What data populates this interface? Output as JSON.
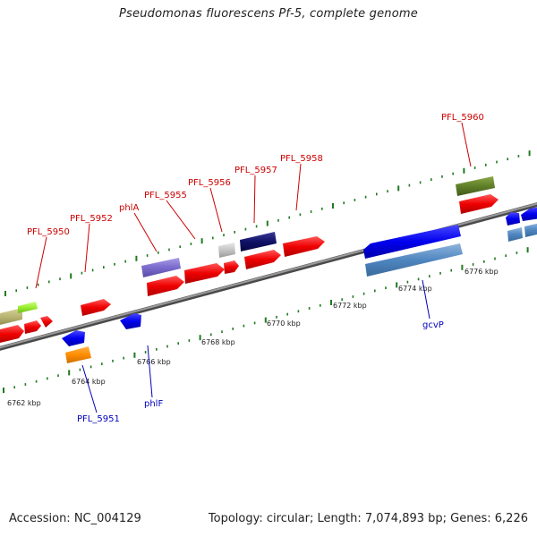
{
  "title": "Pseudomonas fluorescens Pf-5, complete genome",
  "footer": {
    "accession": "Accession: NC_004129",
    "summary": "Topology: circular; Length: 7,074,893 bp; Genes: 6,226"
  },
  "colors": {
    "backbone": "#808080",
    "tick": "#1f7a1f",
    "label_forward": "#cc0000",
    "label_reverse": "#0000bb"
  },
  "scale_labels": [
    "6762 kbp",
    "6764 kbp",
    "6766 kbp",
    "6768 kbp",
    "6770 kbp",
    "6772 kbp",
    "6774 kbp",
    "6776 kbp"
  ],
  "gene_labels_top": [
    "PFL_5950",
    "PFL_5952",
    "phlA",
    "PFL_5955",
    "PFL_5956",
    "PFL_5957",
    "PFL_5958",
    "PFL_5960"
  ],
  "gene_labels_bottom": [
    "PFL_5951",
    "phlF",
    "gcvP"
  ]
}
